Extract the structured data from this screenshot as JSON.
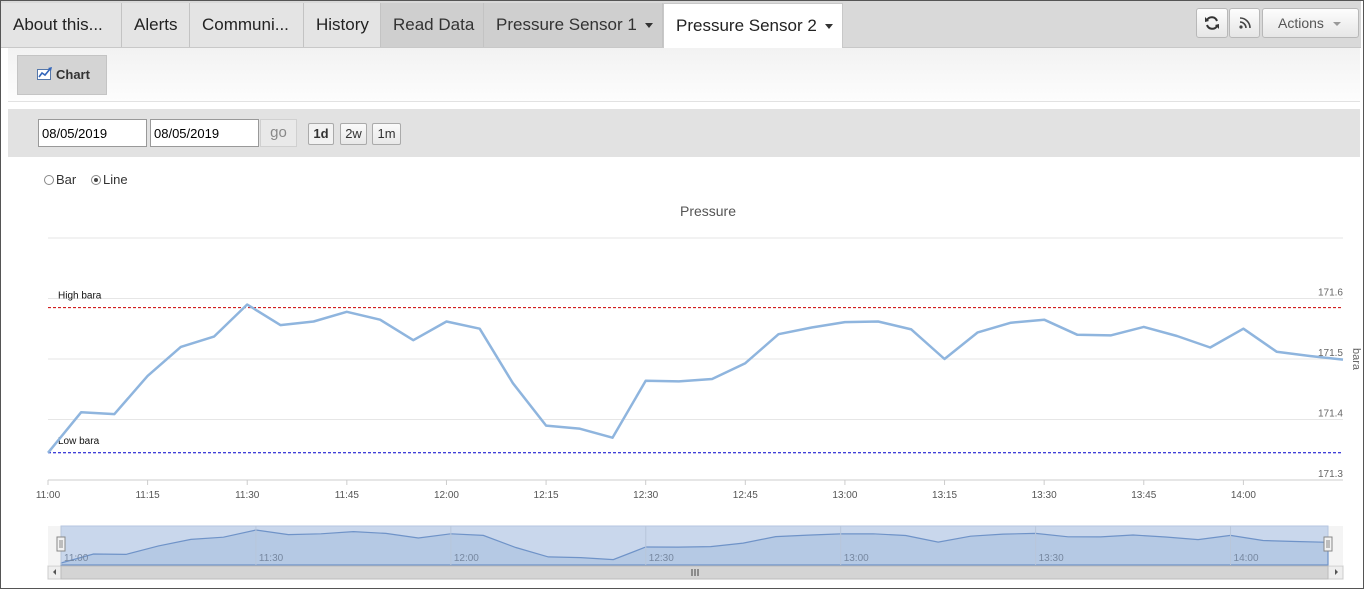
{
  "tabs": [
    {
      "label": "About this..."
    },
    {
      "label": "Alerts"
    },
    {
      "label": "Communi..."
    },
    {
      "label": "History"
    },
    {
      "label": "Read Data"
    },
    {
      "label": "Pressure Sensor 1"
    },
    {
      "label": "Pressure Sensor 2"
    }
  ],
  "header_buttons": {
    "refresh_icon": "refresh-icon",
    "rss_icon": "rss-icon",
    "actions_label": "Actions"
  },
  "toolbar": {
    "chart_label": "Chart",
    "chart_icon": "chart-icon"
  },
  "date_range": {
    "from": "08/05/2019",
    "to": "08/05/2019",
    "go_label": "go",
    "ranges": [
      "1d",
      "2w",
      "1m"
    ],
    "selected_range": "1d"
  },
  "chart_type_options": {
    "bar_label": "Bar",
    "line_label": "Line",
    "selected": "Line"
  },
  "chart_data": {
    "type": "line",
    "title": "Pressure",
    "ylabel": "bara",
    "xlabel": "",
    "x_tick_labels": [
      "11:00",
      "11:15",
      "11:30",
      "11:45",
      "12:00",
      "12:15",
      "12:30",
      "12:45",
      "13:00",
      "13:15",
      "13:30",
      "13:45",
      "14:00"
    ],
    "y_tick_labels": [
      "171.3",
      "171.4",
      "171.5",
      "171.6"
    ],
    "ylim": [
      171.3,
      171.7
    ],
    "xlim_minutes": [
      0,
      195
    ],
    "grid": true,
    "line_color": "#8fb5de",
    "thresholds": [
      {
        "label": "High bara",
        "value": 171.585,
        "color": "#cc0000"
      },
      {
        "label": "Low bara",
        "value": 171.345,
        "color": "#0000cc"
      }
    ],
    "series": [
      {
        "x_minutes": [
          0,
          5,
          10,
          15,
          20,
          25,
          30,
          35,
          40,
          45,
          50,
          55,
          60,
          65,
          70,
          75,
          80,
          85,
          90,
          95,
          100,
          105,
          110,
          115,
          120,
          125,
          130,
          135,
          140,
          145,
          150,
          155,
          160,
          165,
          170,
          175,
          180,
          185,
          190,
          195
        ],
        "values": [
          171.345,
          171.412,
          171.409,
          171.472,
          171.52,
          171.537,
          171.59,
          171.556,
          171.562,
          171.578,
          171.565,
          171.531,
          171.562,
          171.55,
          171.46,
          171.39,
          171.385,
          171.37,
          171.464,
          171.463,
          171.467,
          171.493,
          171.541,
          171.552,
          171.561,
          171.562,
          171.549,
          171.5,
          171.544,
          171.56,
          171.565,
          171.54,
          171.539,
          171.553,
          171.538,
          171.519,
          171.55,
          171.512,
          171.505,
          171.499
        ]
      }
    ]
  },
  "navigator": {
    "tick_labels": [
      "11:00",
      "11:30",
      "12:00",
      "12:30",
      "13:00",
      "13:30",
      "14:00"
    ]
  }
}
